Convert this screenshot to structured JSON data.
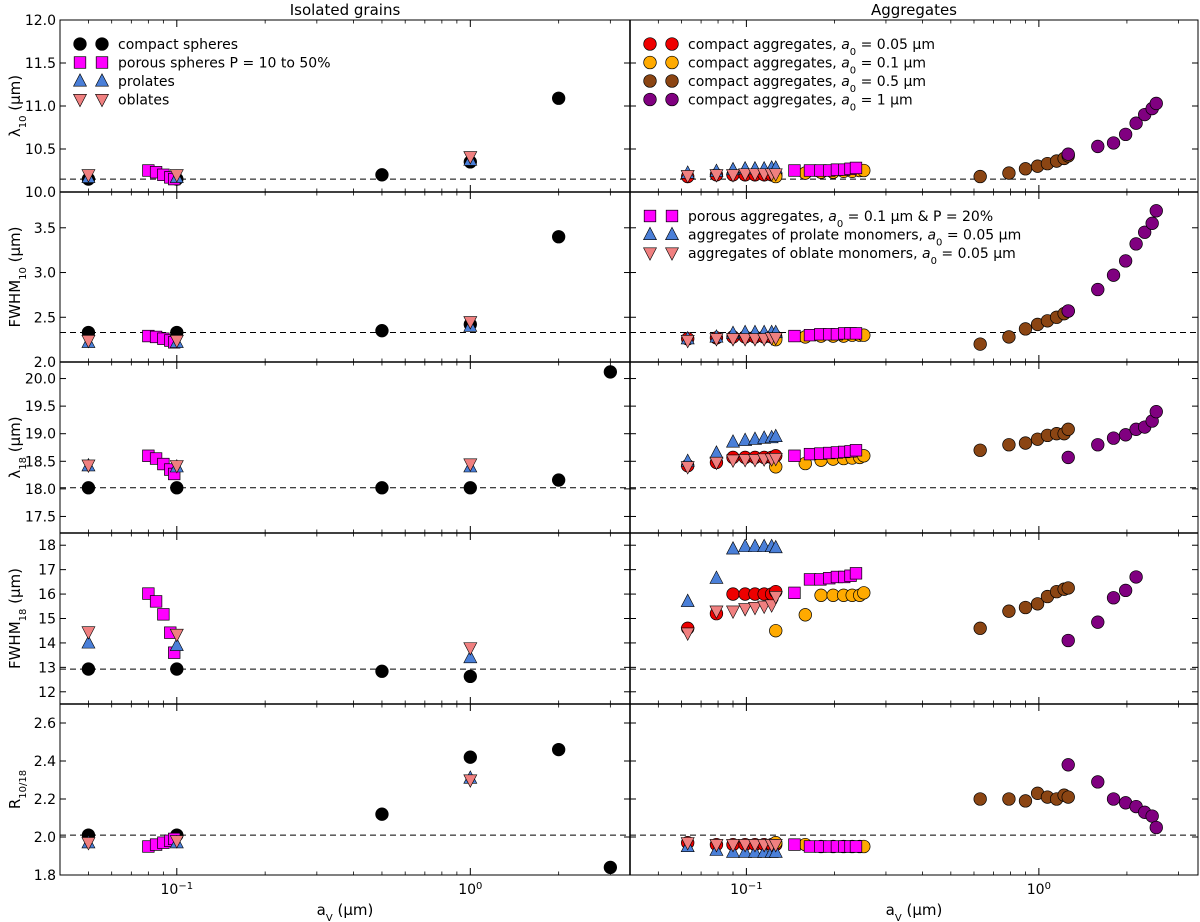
{
  "chart_data": {
    "type": "scatter",
    "x_scale": "log",
    "xlim": [
      0.04,
      3.5
    ],
    "xlabel": "a_V (μm)",
    "x_ticks": [
      {
        "value": 0.1,
        "base": "10",
        "exp": "−1"
      },
      {
        "value": 1,
        "base": "10",
        "exp": "0"
      }
    ],
    "columns": [
      {
        "title": "Isolated grains"
      },
      {
        "title": "Aggregates"
      }
    ],
    "rows": [
      {
        "ylabel": "λ10 (μm)",
        "ylabel_main": "λ",
        "ylabel_sub": "10",
        "ylabel_tail": " (μm)",
        "ylim": [
          10.0,
          12.0
        ],
        "baseline": 10.15,
        "ticks": [
          "10.0",
          "10.5",
          "11.0",
          "11.5",
          "12.0"
        ]
      },
      {
        "ylabel": "FWHM10 (μm)",
        "ylabel_main": "FWHM",
        "ylabel_sub": "10",
        "ylabel_tail": " (μm)",
        "ylim": [
          2.0,
          3.9
        ],
        "baseline": 2.33,
        "ticks": [
          "2.0",
          "2.5",
          "3.0",
          "3.5"
        ]
      },
      {
        "ylabel": "λ18 (μm)",
        "ylabel_main": "λ",
        "ylabel_sub": "18",
        "ylabel_tail": " (μm)",
        "ylim": [
          17.2,
          20.3
        ],
        "baseline": 18.02,
        "ticks": [
          "17.5",
          "18.0",
          "18.5",
          "19.0",
          "19.5",
          "20.0"
        ]
      },
      {
        "ylabel": "FWHM18 (μm)",
        "ylabel_main": "FWHM",
        "ylabel_sub": "18",
        "ylabel_tail": " (μm)",
        "ylim": [
          11.5,
          18.5
        ],
        "baseline": 12.93,
        "ticks": [
          "12",
          "13",
          "14",
          "15",
          "16",
          "17",
          "18"
        ]
      },
      {
        "ylabel": "R10/18",
        "ylabel_main": "R",
        "ylabel_sub": "10/18",
        "ylabel_tail": "",
        "ylim": [
          1.8,
          2.7
        ],
        "baseline": 2.01,
        "ticks": [
          "1.8",
          "2.0",
          "2.2",
          "2.4",
          "2.6"
        ]
      }
    ],
    "styles": {
      "compact-spheres": {
        "marker": "circle",
        "color": "#000000"
      },
      "porous-spheres": {
        "marker": "square",
        "color": "#ff00ff"
      },
      "prolates": {
        "marker": "triangle-up",
        "color": "#4a7fd8"
      },
      "oblates": {
        "marker": "triangle-down",
        "color": "#f08080"
      },
      "compact-agg-005": {
        "marker": "circle",
        "color": "#ee0000"
      },
      "compact-agg-01": {
        "marker": "circle",
        "color": "#ffaa00"
      },
      "compact-agg-05": {
        "marker": "circle",
        "color": "#8b4513"
      },
      "compact-agg-1": {
        "marker": "circle",
        "color": "#800080"
      },
      "porous-agg": {
        "marker": "square",
        "color": "#ff00ff"
      },
      "prolate-agg": {
        "marker": "triangle-up",
        "color": "#4a7fd8"
      },
      "oblate-agg": {
        "marker": "triangle-down",
        "color": "#f08080"
      }
    },
    "legends": [
      {
        "panel": [
          0,
          0
        ],
        "entries": [
          {
            "style": "compact-spheres",
            "label": "compact spheres"
          },
          {
            "style": "porous-spheres",
            "label": "porous spheres P = 10 to 50%"
          },
          {
            "style": "prolates",
            "label": "prolates"
          },
          {
            "style": "oblates",
            "label": "oblates"
          }
        ]
      },
      {
        "panel": [
          0,
          1
        ],
        "entries": [
          {
            "style": "compact-agg-005",
            "label": "compact aggregates, a0 = 0.05 μm",
            "pre": "compact aggregates, ",
            "sub": "0",
            "post": " = 0.05 μm"
          },
          {
            "style": "compact-agg-01",
            "label": "compact aggregates, a0 = 0.1 μm",
            "pre": "compact aggregates, ",
            "sub": "0",
            "post": " = 0.1 μm"
          },
          {
            "style": "compact-agg-05",
            "label": "compact aggregates, a0 = 0.5 μm",
            "pre": "compact aggregates, ",
            "sub": "0",
            "post": " = 0.5 μm"
          },
          {
            "style": "compact-agg-1",
            "label": "compact aggregates, a0 = 1 μm",
            "pre": "compact aggregates, ",
            "sub": "0",
            "post": " = 1 μm"
          }
        ]
      },
      {
        "panel": [
          1,
          1
        ],
        "entries": [
          {
            "style": "porous-agg",
            "label": "porous aggregates, a0 = 0.1 μm & P = 20%",
            "pre": "porous aggregates, ",
            "sub": "0",
            "post": " = 0.1 μm & P = 20%"
          },
          {
            "style": "prolate-agg",
            "label": "aggregates of prolate monomers, a0 = 0.05 μm",
            "pre": "aggregates of prolate monomers, ",
            "sub": "0",
            "post": " = 0.05 μm"
          },
          {
            "style": "oblate-agg",
            "label": "aggregates of oblate monomers, a0 = 0.05 μm",
            "pre": "aggregates of oblate monomers, ",
            "sub": "0",
            "post": " = 0.05 μm"
          }
        ]
      }
    ],
    "series": [
      {
        "style": "compact-spheres",
        "col": 0,
        "x": [
          0.05,
          0.1,
          0.5,
          1.0,
          2.0,
          3.0
        ],
        "y": [
          [
            10.15,
            10.15,
            10.2,
            10.35,
            11.09,
            null
          ],
          [
            2.33,
            2.33,
            2.35,
            2.42,
            3.4,
            null
          ],
          [
            18.02,
            18.02,
            18.02,
            18.02,
            18.16,
            20.12
          ],
          [
            12.93,
            12.93,
            12.84,
            12.63,
            null,
            null
          ],
          [
            2.01,
            2.01,
            2.12,
            2.42,
            2.46,
            1.84
          ]
        ]
      },
      {
        "style": "porous-spheres",
        "col": 0,
        "x": [
          0.08,
          0.085,
          0.09,
          0.095,
          0.098
        ],
        "y": [
          [
            10.25,
            10.23,
            10.2,
            10.17,
            10.15
          ],
          [
            2.29,
            2.28,
            2.26,
            2.24,
            2.22
          ],
          [
            18.6,
            18.55,
            18.45,
            18.35,
            18.27
          ],
          [
            16.02,
            15.7,
            15.17,
            14.42,
            13.6
          ],
          [
            1.95,
            1.96,
            1.97,
            1.98,
            1.99
          ]
        ]
      },
      {
        "style": "prolates",
        "col": 0,
        "x": [
          0.05,
          0.1,
          1.0
        ],
        "y": [
          [
            10.17,
            10.17,
            10.37
          ],
          [
            2.22,
            2.22,
            2.4
          ],
          [
            18.42,
            18.4,
            18.4
          ],
          [
            14.0,
            13.9,
            13.4
          ],
          [
            1.97,
            1.97,
            2.31
          ]
        ]
      },
      {
        "style": "oblates",
        "col": 0,
        "x": [
          0.05,
          0.1,
          1.0
        ],
        "y": [
          [
            10.2,
            10.2,
            10.41
          ],
          [
            2.24,
            2.24,
            2.45
          ],
          [
            18.43,
            18.42,
            18.45
          ],
          [
            14.45,
            14.35,
            13.8
          ],
          [
            1.97,
            1.98,
            2.3
          ]
        ]
      },
      {
        "style": "compact-agg-005",
        "col": 1,
        "x": [
          0.063,
          0.079,
          0.09,
          0.099,
          0.107,
          0.115,
          0.122,
          0.126
        ],
        "y": [
          [
            10.18,
            10.2,
            10.2,
            10.2,
            10.2,
            10.2,
            10.2,
            10.2
          ],
          [
            2.26,
            2.27,
            2.28,
            2.28,
            2.28,
            2.28,
            2.28,
            2.28
          ],
          [
            18.42,
            18.48,
            18.57,
            18.57,
            18.57,
            18.57,
            18.57,
            18.6
          ],
          [
            14.6,
            15.2,
            16.0,
            16.0,
            16.0,
            16.0,
            16.0,
            16.1
          ],
          [
            1.97,
            1.96,
            1.96,
            1.96,
            1.96,
            1.96,
            1.96,
            1.96
          ]
        ]
      },
      {
        "style": "compact-agg-01",
        "col": 1,
        "x": [
          0.126,
          0.159,
          0.18,
          0.198,
          0.215,
          0.23,
          0.244,
          0.252
        ],
        "y": [
          [
            10.18,
            10.22,
            10.23,
            10.23,
            10.24,
            10.24,
            10.25,
            10.25
          ],
          [
            2.25,
            2.28,
            2.29,
            2.29,
            2.29,
            2.3,
            2.3,
            2.3
          ],
          [
            18.4,
            18.46,
            18.52,
            18.54,
            18.55,
            18.56,
            18.57,
            18.6
          ],
          [
            14.5,
            15.15,
            15.95,
            15.95,
            15.95,
            15.95,
            15.95,
            16.05
          ],
          [
            1.97,
            1.96,
            1.95,
            1.95,
            1.95,
            1.95,
            1.95,
            1.95
          ]
        ]
      },
      {
        "style": "compact-agg-05",
        "col": 1,
        "x": [
          0.63,
          0.79,
          0.9,
          0.99,
          1.07,
          1.15,
          1.22,
          1.26
        ],
        "y": [
          [
            10.18,
            10.22,
            10.27,
            10.3,
            10.33,
            10.36,
            10.39,
            10.42
          ],
          [
            2.2,
            2.28,
            2.37,
            2.42,
            2.46,
            2.5,
            2.54,
            2.57
          ],
          [
            18.7,
            18.8,
            18.83,
            18.9,
            18.97,
            19.0,
            19.0,
            19.08
          ],
          [
            14.6,
            15.3,
            15.45,
            15.6,
            15.9,
            16.1,
            16.2,
            16.25
          ],
          [
            2.2,
            2.2,
            2.19,
            2.23,
            2.21,
            2.2,
            2.22,
            2.21
          ]
        ]
      },
      {
        "style": "compact-agg-1",
        "col": 1,
        "x": [
          1.26,
          1.59,
          1.8,
          1.98,
          2.15,
          2.3,
          2.44,
          2.52
        ],
        "y": [
          [
            10.44,
            10.53,
            10.57,
            10.67,
            10.8,
            10.9,
            10.97,
            11.03
          ],
          [
            2.57,
            2.81,
            2.97,
            3.13,
            3.32,
            3.45,
            3.55,
            3.69
          ],
          [
            18.57,
            18.8,
            18.92,
            18.98,
            19.08,
            19.12,
            19.23,
            19.4
          ],
          [
            14.1,
            14.85,
            15.85,
            16.15,
            16.7,
            null,
            null,
            null
          ],
          [
            2.38,
            2.29,
            2.2,
            2.18,
            2.16,
            2.13,
            2.11,
            2.05
          ]
        ]
      },
      {
        "style": "porous-agg",
        "col": 1,
        "x": [
          0.146,
          0.165,
          0.179,
          0.192,
          0.204,
          0.216,
          0.227,
          0.237
        ],
        "y": [
          [
            10.25,
            10.25,
            10.25,
            10.25,
            10.26,
            10.26,
            10.27,
            10.28
          ],
          [
            2.29,
            2.3,
            2.31,
            2.31,
            2.31,
            2.32,
            2.32,
            2.32
          ],
          [
            18.6,
            18.63,
            18.64,
            18.65,
            18.66,
            18.67,
            18.68,
            18.7
          ],
          [
            16.05,
            16.6,
            16.6,
            16.65,
            16.7,
            16.7,
            16.75,
            16.85
          ],
          [
            1.96,
            1.95,
            1.95,
            1.95,
            1.95,
            1.95,
            1.95,
            1.95
          ]
        ]
      },
      {
        "style": "prolate-agg",
        "col": 1,
        "x": [
          0.063,
          0.079,
          0.09,
          0.099,
          0.107,
          0.115,
          0.122,
          0.126
        ],
        "y": [
          [
            10.22,
            10.24,
            10.26,
            10.27,
            10.27,
            10.27,
            10.28,
            10.28
          ],
          [
            2.26,
            2.28,
            2.32,
            2.33,
            2.33,
            2.33,
            2.33,
            2.33
          ],
          [
            18.5,
            18.65,
            18.85,
            18.88,
            18.9,
            18.92,
            18.93,
            18.95
          ],
          [
            15.7,
            16.65,
            17.85,
            17.95,
            17.95,
            17.95,
            17.95,
            17.9
          ],
          [
            1.95,
            1.93,
            1.92,
            1.92,
            1.92,
            1.92,
            1.92,
            1.92
          ]
        ]
      },
      {
        "style": "oblate-agg",
        "col": 1,
        "x": [
          0.063,
          0.079,
          0.09,
          0.099,
          0.107,
          0.115,
          0.122,
          0.126
        ],
        "y": [
          [
            10.19,
            10.2,
            10.2,
            10.21,
            10.21,
            10.21,
            10.21,
            10.21
          ],
          [
            2.24,
            2.26,
            2.26,
            2.26,
            2.26,
            2.26,
            2.27,
            2.27
          ],
          [
            18.4,
            18.48,
            18.52,
            18.53,
            18.53,
            18.54,
            18.54,
            18.55
          ],
          [
            14.4,
            15.3,
            15.3,
            15.4,
            15.45,
            15.5,
            15.55,
            15.9
          ],
          [
            1.97,
            1.96,
            1.96,
            1.96,
            1.96,
            1.96,
            1.96,
            1.96
          ]
        ]
      }
    ]
  }
}
